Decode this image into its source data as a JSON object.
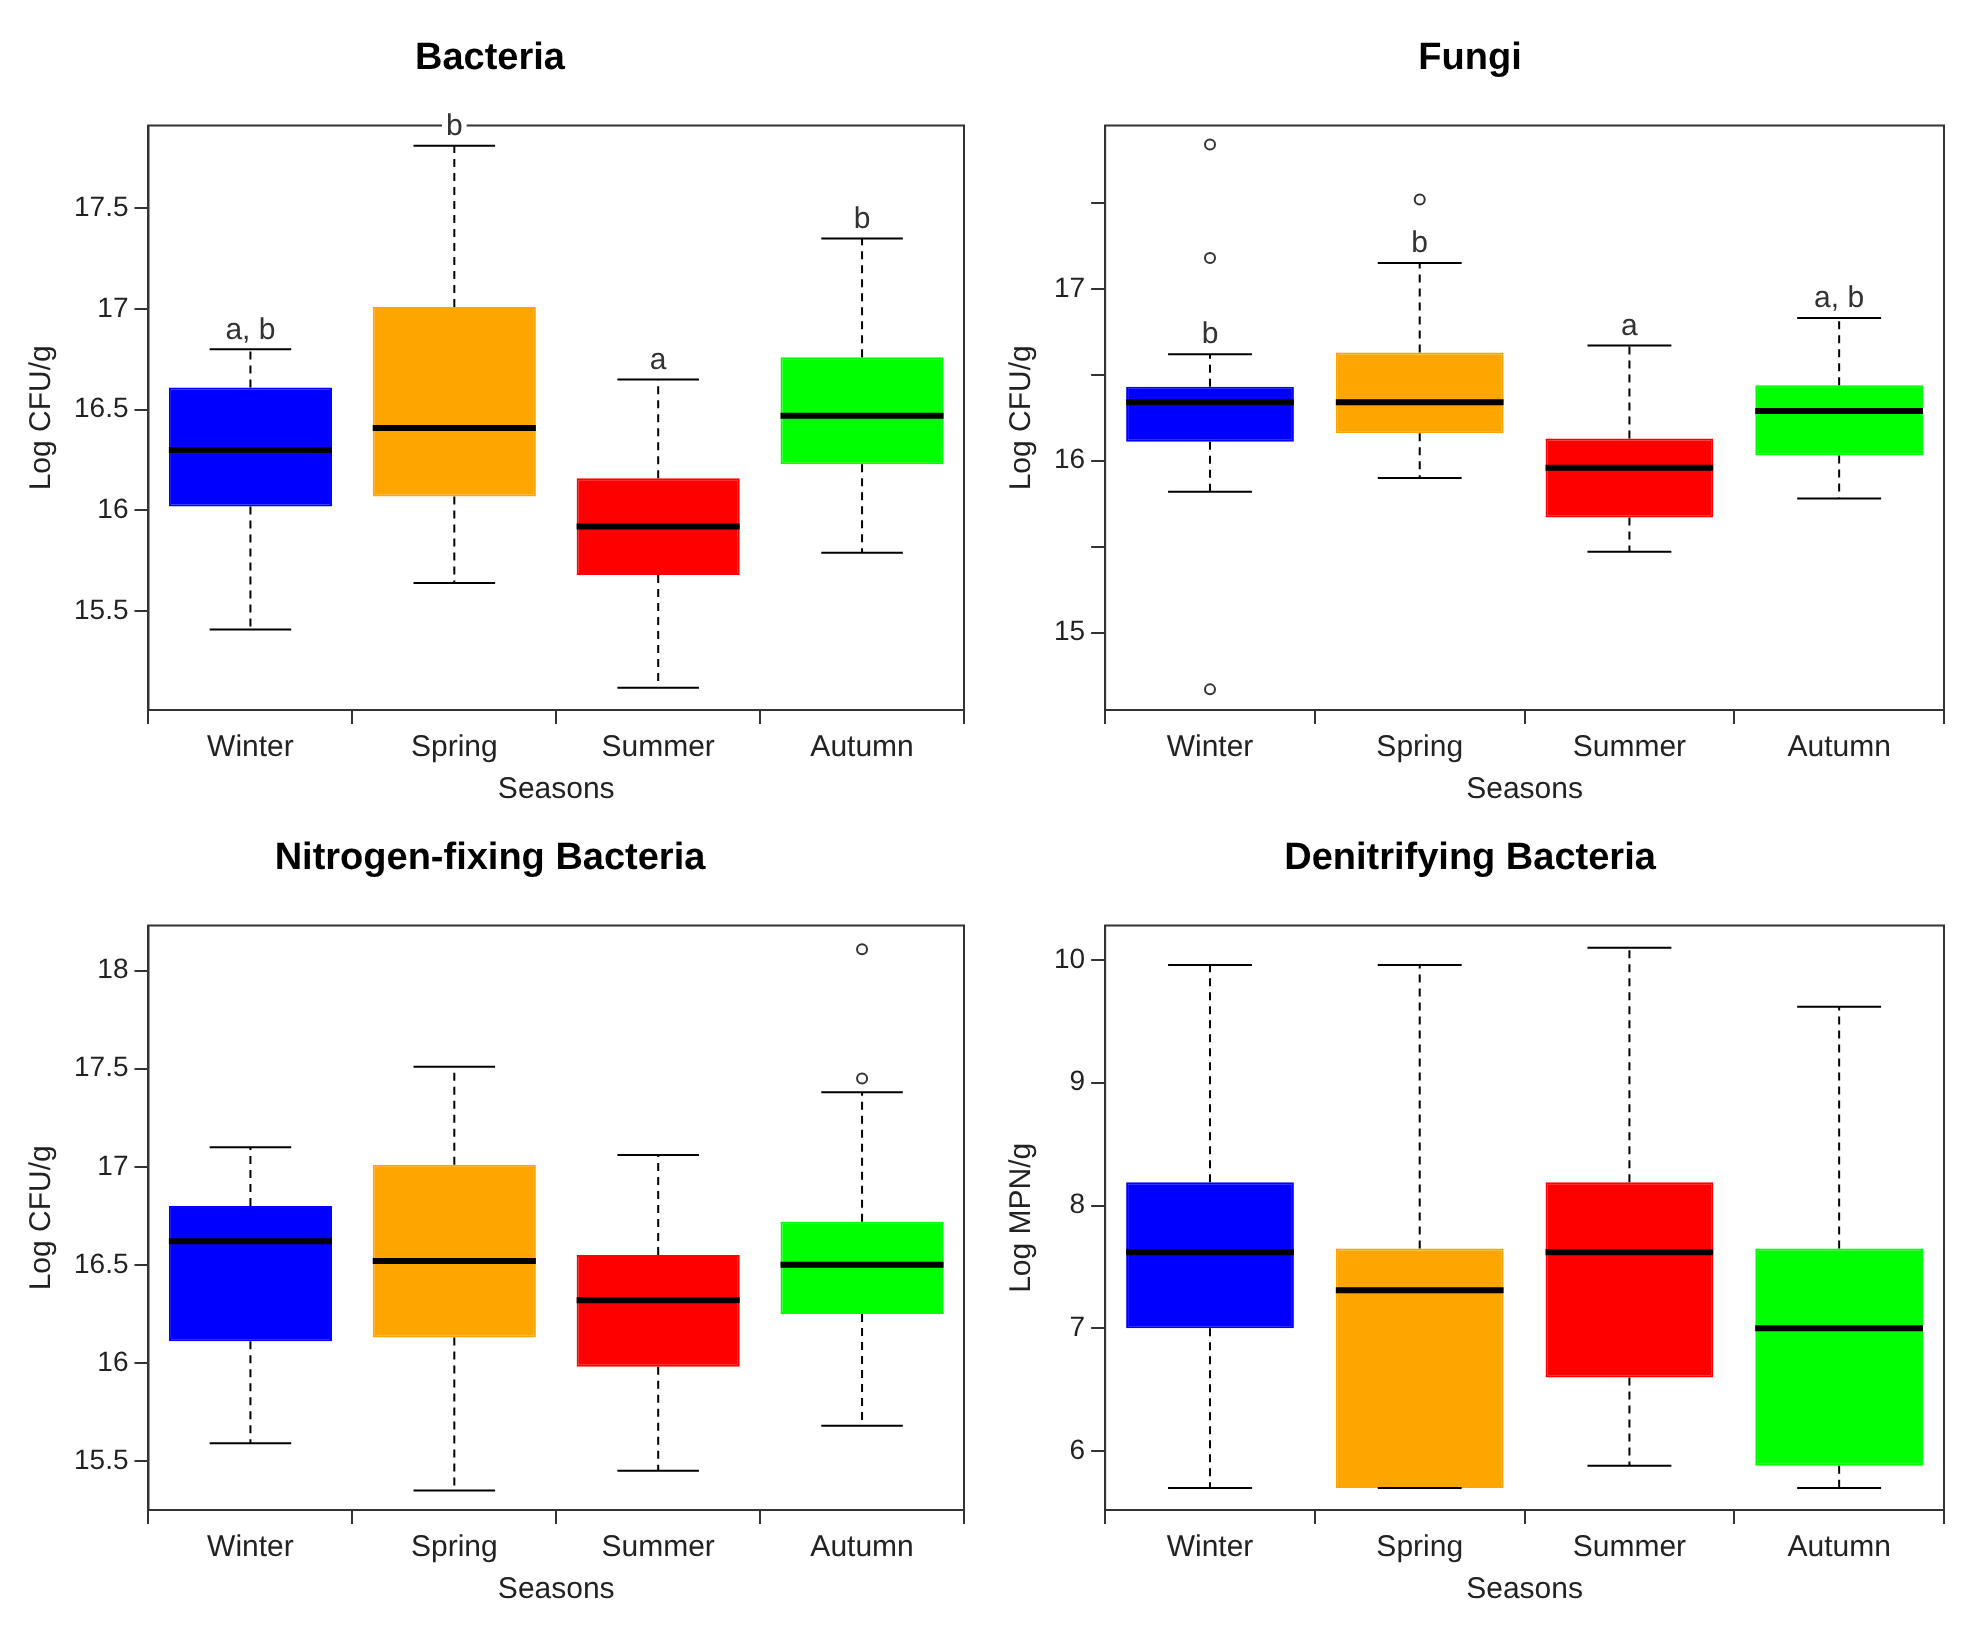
{
  "chart_data": [
    {
      "type": "box",
      "title": "Bacteria",
      "xlabel": "Seasons",
      "ylabel": "Log CFU/g",
      "categories": [
        "Winter",
        "Spring",
        "Summer",
        "Autumn"
      ],
      "colors": [
        "#0000ff",
        "#ffa500",
        "#ff0000",
        "#00ff00"
      ],
      "ylim": [
        15.01,
        17.91
      ],
      "yticks": [
        15.5,
        16,
        16.5,
        17,
        17.5
      ],
      "boxes": [
        {
          "low": 15.41,
          "q1": 16.02,
          "median": 16.3,
          "q3": 16.61,
          "high": 16.8
        },
        {
          "low": 15.64,
          "q1": 16.07,
          "median": 16.41,
          "q3": 17.01,
          "high": 17.81
        },
        {
          "low": 15.12,
          "q1": 15.68,
          "median": 15.92,
          "q3": 16.16,
          "high": 16.65
        },
        {
          "low": 15.79,
          "q1": 16.23,
          "median": 16.47,
          "q3": 16.76,
          "high": 17.35
        }
      ],
      "annotations": [
        {
          "text": "a, b",
          "x": "Winter",
          "y": 16.8
        },
        {
          "text": "b",
          "x": "Spring",
          "y": 17.81
        },
        {
          "text": "a",
          "x": "Summer",
          "y": 16.65
        },
        {
          "text": "b",
          "x": "Autumn",
          "y": 17.35
        }
      ]
    },
    {
      "type": "box",
      "title": "Fungi",
      "xlabel": "Seasons",
      "ylabel": "Log CFU/g",
      "categories": [
        "Winter",
        "Spring",
        "Summer",
        "Autumn"
      ],
      "colors": [
        "#0000ff",
        "#ffa500",
        "#ff0000",
        "#00ff00"
      ],
      "ylim": [
        14.55,
        17.95
      ],
      "yticks": [
        15,
        {
          "value": 15.5,
          "label": null
        },
        16,
        {
          "value": 16.5,
          "label": null
        },
        17,
        {
          "value": 17.5,
          "label": null
        }
      ],
      "boxes": [
        {
          "low": 15.82,
          "q1": 16.11,
          "median": 16.34,
          "q3": 16.43,
          "high": 16.62,
          "outliers": [
            17.84,
            17.18,
            14.67
          ]
        },
        {
          "low": 15.9,
          "q1": 16.16,
          "median": 16.34,
          "q3": 16.63,
          "high": 17.15,
          "outliers": [
            17.52
          ]
        },
        {
          "low": 15.47,
          "q1": 15.67,
          "median": 15.96,
          "q3": 16.13,
          "high": 16.67
        },
        {
          "low": 15.78,
          "q1": 16.03,
          "median": 16.29,
          "q3": 16.44,
          "high": 16.83
        }
      ],
      "annotations": [
        {
          "text": "b",
          "x": "Winter",
          "y": 16.62
        },
        {
          "text": "b",
          "x": "Spring",
          "y": 17.15
        },
        {
          "text": "a",
          "x": "Summer",
          "y": 16.67
        },
        {
          "text": "a, b",
          "x": "Autumn",
          "y": 16.83
        }
      ]
    },
    {
      "type": "box",
      "title": "Nitrogen-fixing Bacteria",
      "xlabel": "Seasons",
      "ylabel": "Log CFU/g",
      "categories": [
        "Winter",
        "Spring",
        "Summer",
        "Autumn"
      ],
      "colors": [
        "#0000ff",
        "#ffa500",
        "#ff0000",
        "#00ff00"
      ],
      "ylim": [
        15.25,
        18.23
      ],
      "yticks": [
        15.5,
        16,
        16.5,
        17,
        17.5,
        18
      ],
      "boxes": [
        {
          "low": 15.59,
          "q1": 16.11,
          "median": 16.62,
          "q3": 16.8,
          "high": 17.1
        },
        {
          "low": 15.35,
          "q1": 16.13,
          "median": 16.52,
          "q3": 17.01,
          "high": 17.51
        },
        {
          "low": 15.45,
          "q1": 15.98,
          "median": 16.32,
          "q3": 16.55,
          "high": 17.06
        },
        {
          "low": 15.68,
          "q1": 16.25,
          "median": 16.5,
          "q3": 16.72,
          "high": 17.38,
          "outliers": [
            18.11,
            17.45
          ]
        }
      ]
    },
    {
      "type": "box",
      "title": "Denitrifying Bacteria",
      "xlabel": "Seasons",
      "ylabel": "Log MPN/g",
      "categories": [
        "Winter",
        "Spring",
        "Summer",
        "Autumn"
      ],
      "colors": [
        "#0000ff",
        "#ffa500",
        "#ff0000",
        "#00ff00"
      ],
      "ylim": [
        5.52,
        10.28
      ],
      "yticks": [
        6,
        7,
        8,
        9,
        10
      ],
      "boxes": [
        {
          "low": 5.7,
          "q1": 7.0,
          "median": 7.62,
          "q3": 8.19,
          "high": 9.96
        },
        {
          "low": 5.7,
          "q1": 5.7,
          "median": 7.31,
          "q3": 7.65,
          "high": 9.96
        },
        {
          "low": 5.88,
          "q1": 6.6,
          "median": 7.62,
          "q3": 8.19,
          "high": 10.1
        },
        {
          "low": 5.7,
          "q1": 5.88,
          "median": 7.0,
          "q3": 7.65,
          "high": 9.62
        }
      ]
    }
  ]
}
